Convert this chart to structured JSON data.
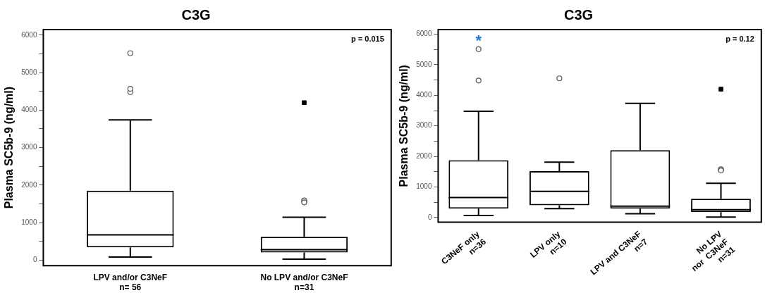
{
  "chart_data": [
    {
      "type": "box",
      "title": "C3G",
      "ylabel": "Plasma SC5b-9 (ng/ml)",
      "categories": [
        "LPV and/or C3NeF\nn= 56",
        "No LPV and/or C3NeF\nn=31"
      ],
      "series": [
        {
          "type": "box",
          "color": "#000000",
          "boxes": [
            {
              "low": 80,
              "q1": 340,
              "median": 670,
              "q3": 1850,
              "high": 3740,
              "outliers": [
                5520,
                4570,
                4480
              ]
            },
            {
              "low": 25,
              "q1": 200,
              "median": 275,
              "q3": 620,
              "high": 1140,
              "outliers": [
                1540,
                1590,
                1560
              ]
            }
          ]
        },
        {
          "type": "scatter",
          "marker": "square",
          "color": "#000000",
          "x": [
            "No LPV and/or C3NeF\nn=31"
          ],
          "values": [
            4200
          ]
        }
      ],
      "ylim": [
        -150,
        6150
      ],
      "yticks": [
        0,
        {
          "value": 500,
          "label": null
        },
        1000,
        {
          "value": 1500,
          "label": null
        },
        2000,
        {
          "value": 2500,
          "label": null
        },
        3000,
        {
          "value": 3500,
          "label": null
        },
        4000,
        {
          "value": 4500,
          "label": null
        },
        5000,
        {
          "value": 5500,
          "label": null
        },
        6000
      ],
      "annotations": [
        "p = 0.015"
      ],
      "grid": false,
      "legend": false
    },
    {
      "type": "box",
      "title": "C3G",
      "ylabel": "Plasma SC5b-9 (ng/ml)",
      "categories": [
        "C3NeF only\nn=36",
        "LPV only\nn=10",
        "LPV and C3NeF\nn=7",
        "No LPV\nnor  C3NeF\nn=31"
      ],
      "series": [
        {
          "type": "box",
          "color": "#000000",
          "boxes": [
            {
              "low": 70,
              "q1": 290,
              "median": 655,
              "q3": 1875,
              "high": 3475,
              "outliers": [
                5510,
                4485
              ]
            },
            {
              "low": 290,
              "q1": 400,
              "median": 860,
              "q3": 1520,
              "high": 1815,
              "outliers": [
                4555
              ]
            },
            {
              "low": 125,
              "q1": 290,
              "median": 375,
              "q3": 2205,
              "high": 3735
            },
            {
              "low": 15,
              "q1": 180,
              "median": 260,
              "q3": 615,
              "high": 1120,
              "outliers": [
                1540,
                1580,
                1560
              ]
            }
          ]
        },
        {
          "type": "scatter",
          "marker": "square",
          "color": "#000000",
          "x": [
            "No LPV\nnor  C3NeF\nn=31"
          ],
          "values": [
            4200
          ]
        }
      ],
      "ylim": [
        -150,
        6150
      ],
      "yticks": [
        0,
        {
          "value": 500,
          "label": null
        },
        1000,
        {
          "value": 1500,
          "label": null
        },
        2000,
        {
          "value": 2500,
          "label": null
        },
        3000,
        {
          "value": 3500,
          "label": null
        },
        4000,
        {
          "value": 4500,
          "label": null
        },
        5000,
        {
          "value": 5500,
          "label": null
        },
        6000
      ],
      "annotations": [
        "p = 0.12",
        "*"
      ],
      "grid": false,
      "legend": false
    }
  ]
}
